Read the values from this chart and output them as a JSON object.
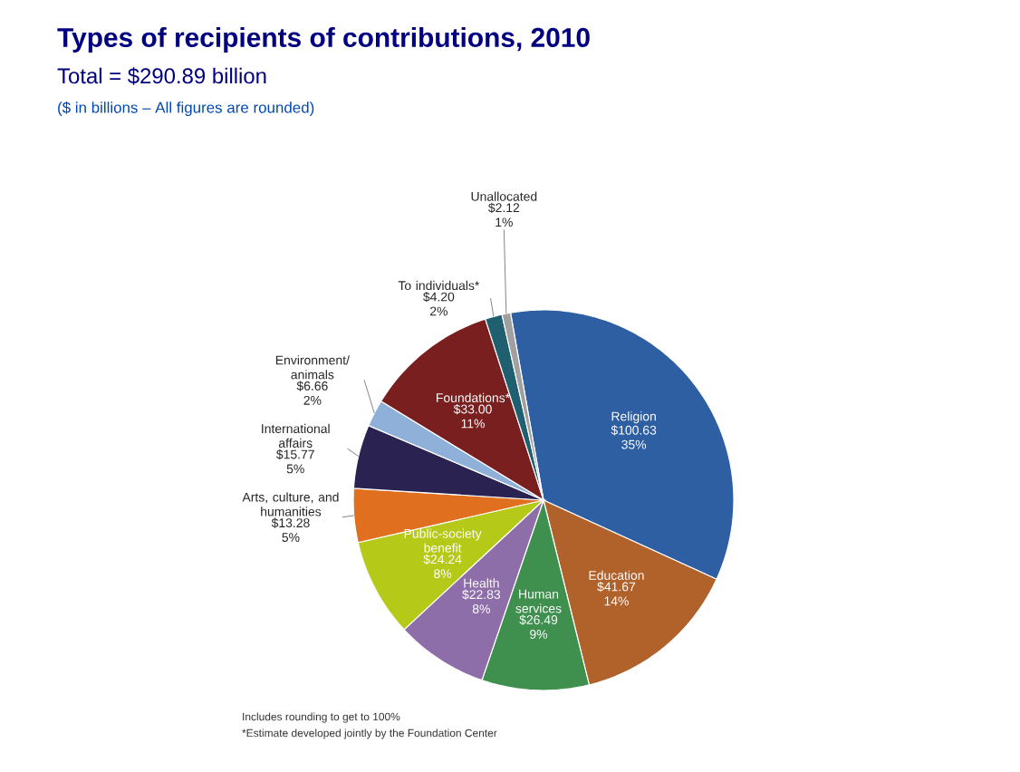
{
  "chart_data": {
    "type": "pie",
    "title": "Types of recipients of contributions, 2010",
    "subtitle": "Total = $290.89 billion",
    "categories": [
      "Religion",
      "Education",
      "Human services",
      "Health",
      "Public-society benefit",
      "Arts, culture, and humanities",
      "International affairs",
      "Environment/ animals",
      "Foundations*",
      "To individuals*",
      "Unallocated"
    ],
    "values": [
      100.63,
      41.67,
      26.49,
      22.83,
      24.24,
      13.28,
      15.77,
      6.66,
      33.0,
      4.2,
      2.12
    ],
    "value_labels": [
      "$100.63 35%",
      "$41.67 14%",
      "$26.49 9%",
      "$22.83 8%",
      "$24.24 8%",
      "$13.28 5%",
      "$15.77 5%",
      "$6.66 2%",
      "$33.00 11%",
      "$4.20 2%",
      "$2.12 1%"
    ],
    "colors": [
      "#2e5fa3",
      "#b0622a",
      "#3f8f4f",
      "#8e6ea8",
      "#b5c918",
      "#e07020",
      "#2a2250",
      "#8fb0d8",
      "#7a1f1f",
      "#1f5f6f",
      "#a0a0a0"
    ],
    "annotations": [
      "($ in billions – All figures are rounded)",
      "Includes rounding to get to 100%",
      "*Estimate developed jointly by the Foundation Center"
    ]
  }
}
